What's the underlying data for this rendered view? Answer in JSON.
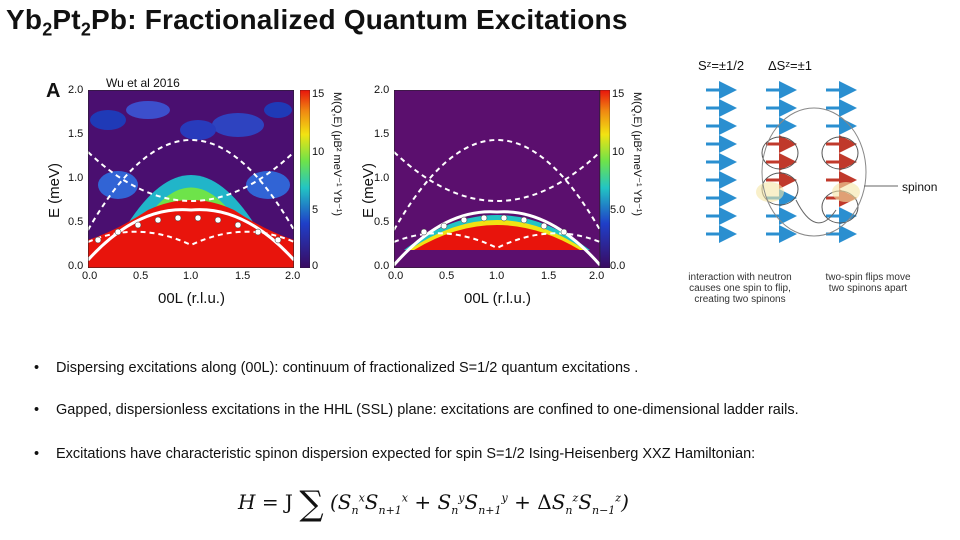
{
  "title": {
    "pre": "Yb",
    "s1": "2",
    "mid": "Pt",
    "s2": "2",
    "post": "Pb:  Fractionalized Quantum Excitations"
  },
  "citation": "Wu et al 2016",
  "panel_letter": "A",
  "plot_left": {
    "ylabel": "E (meV)",
    "xlabel": "00L (r.l.u.)",
    "yticks": [
      "2.0",
      "1.5",
      "1.0",
      "0.5",
      "0.0"
    ],
    "xticks": [
      "0.0",
      "0.5",
      "1.0",
      "1.5",
      "2.0"
    ],
    "cbar_ticks": [
      "15",
      "10",
      "5",
      "0"
    ],
    "cbar_label": "M(Q,E) (μB² meV⁻¹ Yb⁻¹)"
  },
  "plot_right": {
    "ylabel": "E (meV)",
    "xlabel": "00L (r.l.u.)",
    "yticks": [
      "2.0",
      "1.5",
      "1.0",
      "0.5",
      "0.0"
    ],
    "xticks": [
      "0.0",
      "0.5",
      "1.0",
      "1.5",
      "2.0"
    ],
    "cbar_ticks": [
      "15",
      "10",
      "5.0",
      "0.0"
    ],
    "cbar_label": "M(Q,E) (μB² meV⁻¹ Yb⁻¹)"
  },
  "spin_diagram": {
    "header_left": "Sᶻ=±1/2",
    "header_right": "ΔSᶻ=±1",
    "spinon_label": "spinon",
    "caption_left": [
      "interaction with neutron",
      "causes one spin to flip,",
      "creating two spinons"
    ],
    "caption_right": [
      "two-spin flips move",
      "two spinons apart"
    ]
  },
  "bullets": [
    {
      "marker": "•",
      "text": "Dispersing excitations along (00L):  continuum of fractionalized S=1/2 quantum excitations ."
    },
    {
      "marker": "•",
      "text": "Gapped, dispersionless excitations in the  HHL (SSL) plane:  excitations are confined to one-dimensional ladder rails."
    },
    {
      "marker": "•",
      "text": "Excitations have characteristic spinon dispersion expected for spin S=1/2  Ising-Heisenberg XXZ Hamiltonian:"
    }
  ],
  "formula": {
    "lhs": "H",
    "eq": "= J",
    "sum": "∑",
    "delta": "Δ"
  },
  "colors": {
    "bg_purple": "#5b0f6e",
    "heat_red": "#e8140c",
    "arrow_blue": "#2a8fd0",
    "arrow_red": "#c0392b"
  }
}
